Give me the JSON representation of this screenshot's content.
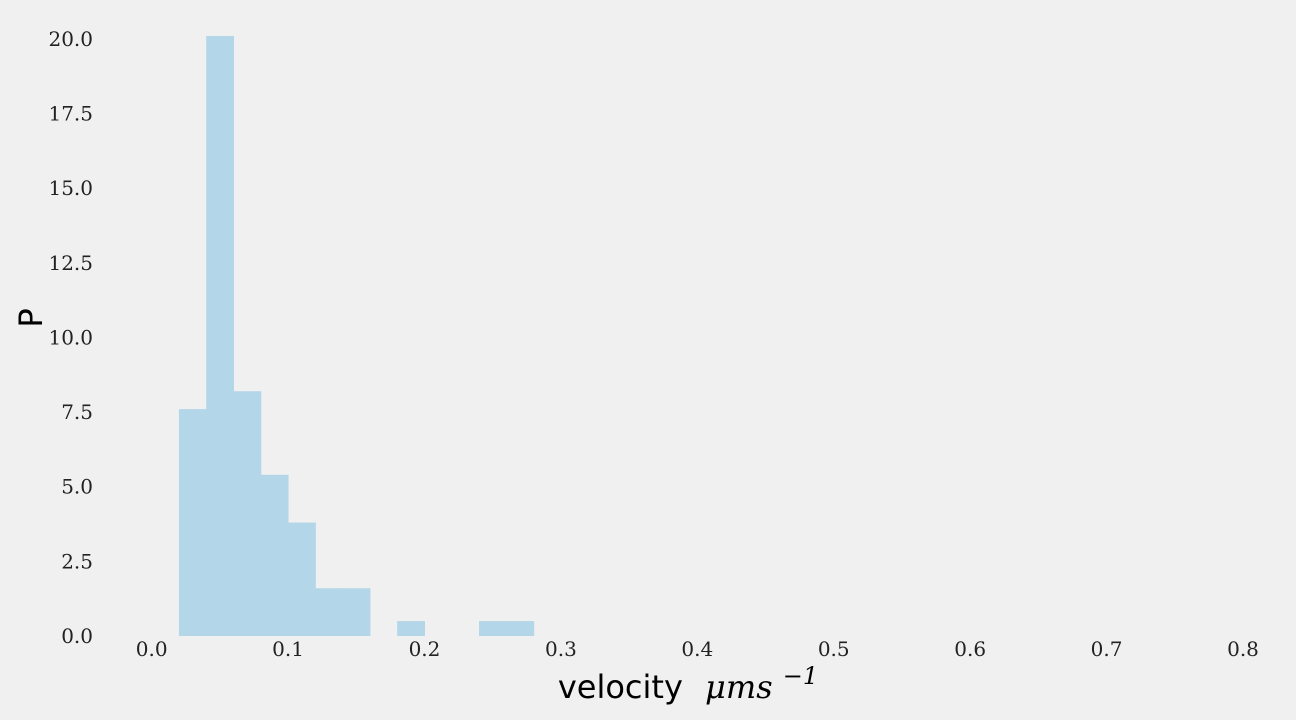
{
  "chart_data": {
    "type": "bar",
    "subtype": "histogram",
    "bins": [
      {
        "x0": 0.02,
        "x1": 0.04,
        "value": 7.6
      },
      {
        "x0": 0.04,
        "x1": 0.06,
        "value": 20.1
      },
      {
        "x0": 0.06,
        "x1": 0.08,
        "value": 8.2
      },
      {
        "x0": 0.08,
        "x1": 0.1,
        "value": 5.4
      },
      {
        "x0": 0.1,
        "x1": 0.12,
        "value": 3.8
      },
      {
        "x0": 0.12,
        "x1": 0.14,
        "value": 1.6
      },
      {
        "x0": 0.14,
        "x1": 0.16,
        "value": 1.6
      },
      {
        "x0": 0.16,
        "x1": 0.18,
        "value": 0.0
      },
      {
        "x0": 0.18,
        "x1": 0.2,
        "value": 0.5
      },
      {
        "x0": 0.2,
        "x1": 0.22,
        "value": 0.0
      },
      {
        "x0": 0.22,
        "x1": 0.24,
        "value": 0.0
      },
      {
        "x0": 0.24,
        "x1": 0.26,
        "value": 0.5
      },
      {
        "x0": 0.26,
        "x1": 0.28,
        "value": 0.5
      }
    ],
    "xlabel": "velocity",
    "xlabel_math": "μms",
    "xlabel_exp": "−1",
    "ylabel": "P",
    "xlim": [
      -0.01,
      0.8
    ],
    "ylim": [
      0,
      20.3
    ],
    "xticks": [
      0.0,
      0.1,
      0.2,
      0.3,
      0.4,
      0.5,
      0.6,
      0.7,
      0.8
    ],
    "xtick_labels": [
      "0.0",
      "0.1",
      "0.2",
      "0.3",
      "0.4",
      "0.5",
      "0.6",
      "0.7",
      "0.8"
    ],
    "yticks": [
      0.0,
      2.5,
      5.0,
      7.5,
      10.0,
      12.5,
      15.0,
      17.5,
      20.0
    ],
    "ytick_labels": [
      "0.0",
      "2.5",
      "5.0",
      "7.5",
      "10.0",
      "12.5",
      "15.0",
      "17.5",
      "20.0"
    ],
    "grid": false,
    "colors": {
      "background": "#f0f0f0",
      "bar": "#b3d6e8",
      "text": "#222222"
    }
  }
}
